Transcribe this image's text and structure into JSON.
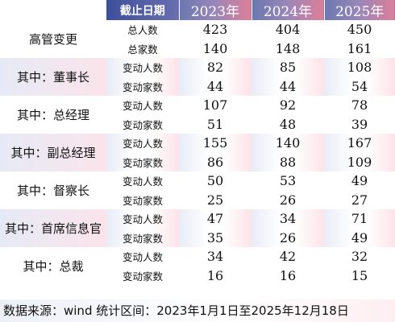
{
  "header": {
    "cutoff_label": "截止日期",
    "years": [
      "2023年",
      "2024年",
      "2025年"
    ]
  },
  "groups": [
    {
      "label": "高管变更",
      "rows": [
        {
          "metric": "总人数",
          "values": [
            "423",
            "404",
            "450"
          ]
        },
        {
          "metric": "总家数",
          "values": [
            "140",
            "148",
            "161"
          ]
        }
      ]
    },
    {
      "label": "其中：董事长",
      "rows": [
        {
          "metric": "变动人数",
          "values": [
            "82",
            "85",
            "108"
          ]
        },
        {
          "metric": "变动家数",
          "values": [
            "44",
            "44",
            "54"
          ]
        }
      ]
    },
    {
      "label": "其中：总经理",
      "rows": [
        {
          "metric": "变动人数",
          "values": [
            "107",
            "92",
            "78"
          ]
        },
        {
          "metric": "变动家数",
          "values": [
            "51",
            "48",
            "39"
          ]
        }
      ]
    },
    {
      "label": "其中：副总经理",
      "rows": [
        {
          "metric": "变动人数",
          "values": [
            "155",
            "140",
            "167"
          ]
        },
        {
          "metric": "变动家数",
          "values": [
            "86",
            "88",
            "109"
          ]
        }
      ]
    },
    {
      "label": "其中：督察长",
      "rows": [
        {
          "metric": "变动人数",
          "values": [
            "50",
            "53",
            "49"
          ]
        },
        {
          "metric": "变动家数",
          "values": [
            "25",
            "26",
            "27"
          ]
        }
      ]
    },
    {
      "label": "其中：首席信息官",
      "rows": [
        {
          "metric": "变动人数",
          "values": [
            "47",
            "34",
            "71"
          ]
        },
        {
          "metric": "变动家数",
          "values": [
            "35",
            "26",
            "49"
          ]
        }
      ]
    },
    {
      "label": "其中：总裁",
      "rows": [
        {
          "metric": "变动人数",
          "values": [
            "34",
            "42",
            "32"
          ]
        },
        {
          "metric": "变动家数",
          "values": [
            "16",
            "16",
            "15"
          ]
        }
      ]
    }
  ],
  "footer": "数据来源：wind 统计区间：2023年1月1日至2025年12月18日"
}
